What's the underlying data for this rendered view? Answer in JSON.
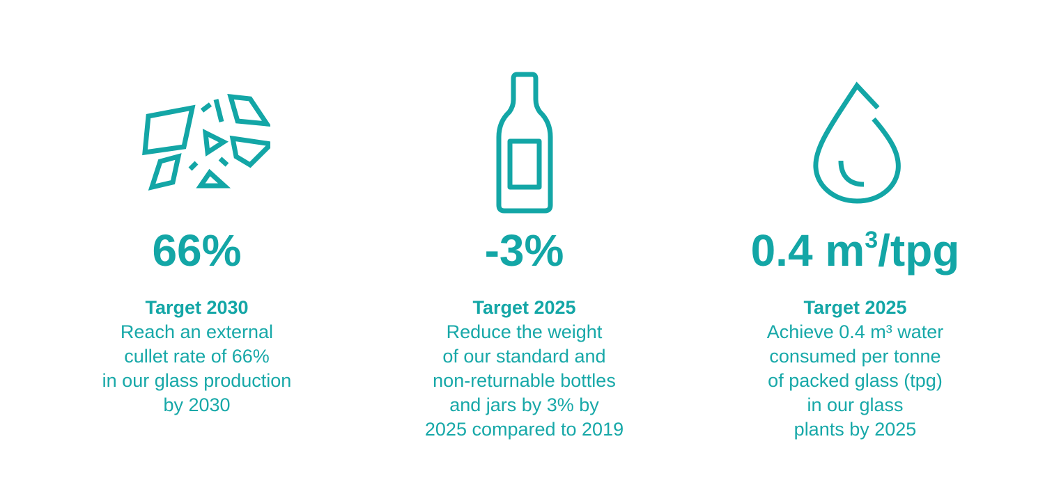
{
  "theme": {
    "accent": "#13a6a6"
  },
  "stats": [
    {
      "icon": "broken-glass-icon",
      "value": "66%",
      "target": "Target 2030",
      "lines": [
        "Reach an external",
        "cullet rate of 66%",
        "in our glass production",
        "by 2030"
      ]
    },
    {
      "icon": "bottle-icon",
      "value": "-3%",
      "target": "Target 2025",
      "lines": [
        "Reduce the weight",
        "of our standard and",
        "non-returnable bottles",
        "and jars by 3% by",
        "2025 compared to 2019"
      ]
    },
    {
      "icon": "water-drop-icon",
      "value_main": "0.4 m",
      "value_sup": "3",
      "value_tail": "/tpg",
      "target": "Target 2025",
      "lines": [
        "Achieve 0.4 m³ water",
        "consumed per tonne",
        "of packed glass (tpg)",
        "in our glass",
        "plants by 2025"
      ]
    }
  ]
}
